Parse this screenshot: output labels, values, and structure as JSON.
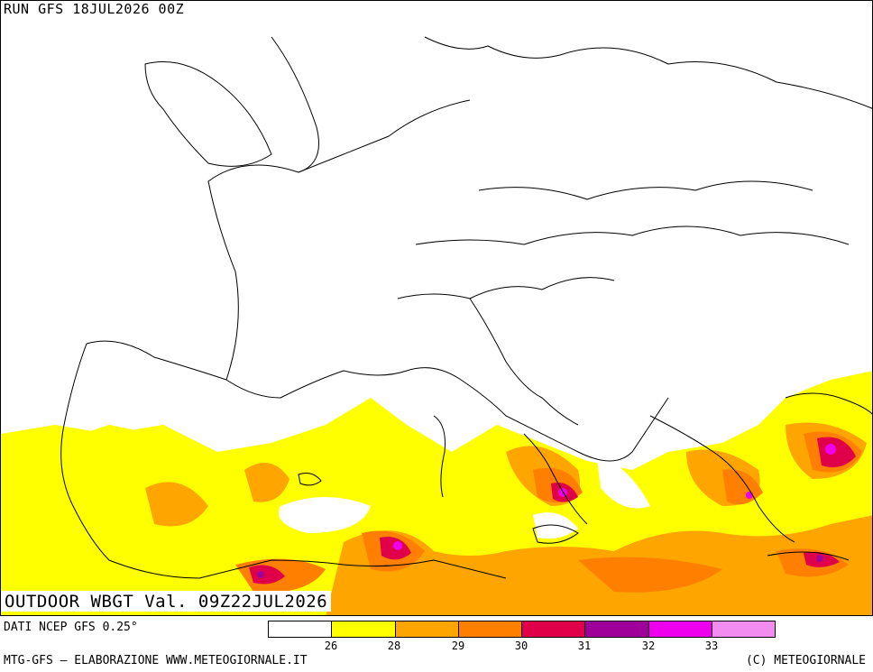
{
  "header": {
    "run": "RUN GFS 18JUL2026 00Z"
  },
  "map": {
    "title": "OUTDOOR WBGT Val. 09Z22JUL2026",
    "coastline_color": "#000000",
    "region": "Europe and Mediterranean"
  },
  "legend": {
    "colors": [
      "#ffffff",
      "#ffff00",
      "#ffa500",
      "#ff7f00",
      "#e0004a",
      "#a0009a",
      "#ee00ee",
      "#f28cf0"
    ],
    "ticks": [
      "26",
      "28",
      "29",
      "30",
      "31",
      "32",
      "33"
    ]
  },
  "footer": {
    "source": "DATI NCEP GFS 0.25°",
    "credits": "MTG-GFS — ELABORAZIONE WWW.METEOGIORNALE.IT",
    "copyright": "(C) METEOGIORNALE"
  }
}
